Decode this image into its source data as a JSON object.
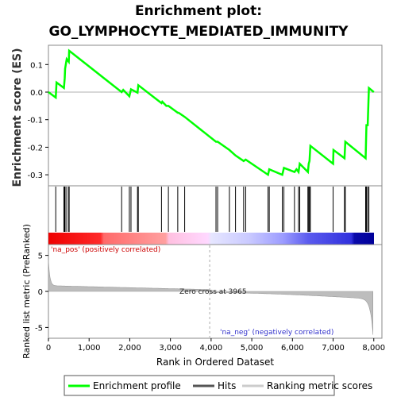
{
  "chart_data": {
    "type": "line",
    "title_line1": "Enrichment plot:",
    "title_line2": "GO_LYMPHOCYTE_MEDIATED_IMMUNITY",
    "es_panel": {
      "ylabel": "Enrichment score (ES)",
      "ylim": [
        -0.34,
        0.17
      ],
      "yticks": [
        "0.1",
        "0.0",
        "-0.1",
        "-0.2",
        "-0.3"
      ],
      "ytick_values": [
        0.1,
        0.0,
        -0.1,
        -0.2,
        -0.3
      ],
      "series_name": "Enrichment profile",
      "color": "#00ff00",
      "points": [
        [
          0,
          0.0
        ],
        [
          180,
          -0.02
        ],
        [
          200,
          0.035
        ],
        [
          380,
          0.015
        ],
        [
          400,
          0.05
        ],
        [
          410,
          0.085
        ],
        [
          450,
          0.12
        ],
        [
          500,
          0.11
        ],
        [
          510,
          0.15
        ],
        [
          1800,
          0.0
        ],
        [
          1840,
          0.008
        ],
        [
          1990,
          -0.015
        ],
        [
          2030,
          0.01
        ],
        [
          2190,
          -0.002
        ],
        [
          2210,
          0.025
        ],
        [
          2780,
          -0.04
        ],
        [
          2800,
          -0.035
        ],
        [
          2900,
          -0.05
        ],
        [
          2950,
          -0.05
        ],
        [
          3180,
          -0.075
        ],
        [
          3200,
          -0.075
        ],
        [
          3350,
          -0.09
        ],
        [
          4120,
          -0.18
        ],
        [
          4160,
          -0.18
        ],
        [
          4450,
          -0.21
        ],
        [
          4600,
          -0.23
        ],
        [
          4800,
          -0.25
        ],
        [
          4850,
          -0.245
        ],
        [
          5400,
          -0.3
        ],
        [
          5430,
          -0.28
        ],
        [
          5750,
          -0.3
        ],
        [
          5790,
          -0.275
        ],
        [
          6050,
          -0.29
        ],
        [
          6100,
          -0.28
        ],
        [
          6150,
          -0.29
        ],
        [
          6180,
          -0.26
        ],
        [
          6380,
          -0.29
        ],
        [
          6400,
          -0.26
        ],
        [
          6420,
          -0.25
        ],
        [
          6440,
          -0.195
        ],
        [
          7000,
          -0.26
        ],
        [
          7010,
          -0.21
        ],
        [
          7280,
          -0.24
        ],
        [
          7300,
          -0.18
        ],
        [
          7800,
          -0.24
        ],
        [
          7820,
          -0.12
        ],
        [
          7850,
          -0.12
        ],
        [
          7880,
          0.015
        ],
        [
          8000,
          0.0
        ]
      ]
    },
    "hits": [
      180,
      380,
      400,
      410,
      450,
      500,
      510,
      1800,
      1990,
      2030,
      2190,
      2210,
      2780,
      2950,
      3180,
      3350,
      4120,
      4160,
      4450,
      4600,
      4800,
      4850,
      5400,
      5430,
      5750,
      5790,
      6050,
      6150,
      6180,
      6380,
      6400,
      6420,
      6440,
      7000,
      7280,
      7300,
      7800,
      7820,
      7850,
      7880
    ],
    "hits_legend": "Hits",
    "heatmap": {
      "pos_label": "'na_pos' (positively correlated)",
      "neg_label": "'na_neg' (negatively correlated)"
    },
    "metric_panel": {
      "ylabel": "Ranked list metric (PreRanked)",
      "ylim": [
        -6.5,
        6.5
      ],
      "yticks": [
        "5",
        "0",
        "-5"
      ],
      "ytick_values": [
        5,
        0,
        -5
      ],
      "zero_cross_label": "Zero cross at 3965",
      "zero_cross": 3965,
      "series_name": "Ranking metric scores"
    },
    "xaxis": {
      "label": "Rank in Ordered Dataset",
      "xlim": [
        0,
        8200
      ],
      "ticks": [
        "0",
        "1,000",
        "2,000",
        "3,000",
        "4,000",
        "5,000",
        "6,000",
        "7,000",
        "8,000"
      ],
      "tick_values": [
        0,
        1000,
        2000,
        3000,
        4000,
        5000,
        6000,
        7000,
        8000
      ],
      "n_genes": 7980
    },
    "legend": {
      "entries": [
        "Enrichment profile",
        "Hits",
        "Ranking metric scores"
      ],
      "placement": "bottom"
    }
  }
}
